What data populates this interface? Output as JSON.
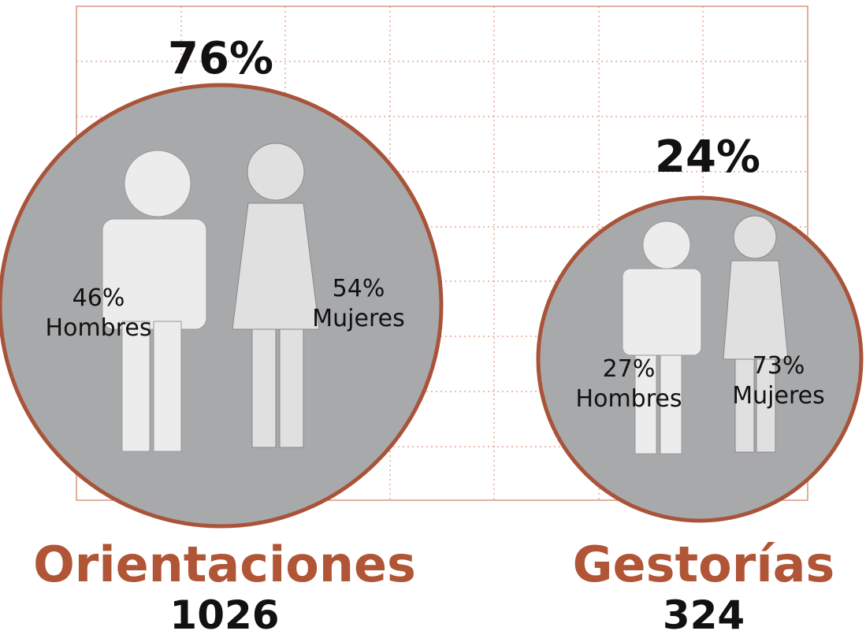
{
  "groups": [
    {
      "share": "76%",
      "men": {
        "pct": "46%",
        "label": "Hombres"
      },
      "women": {
        "pct": "54%",
        "label": "Mujeres"
      },
      "title": "Orientaciones",
      "total": "1026"
    },
    {
      "share": "24%",
      "men": {
        "pct": "27%",
        "label": "Hombres"
      },
      "women": {
        "pct": "73%",
        "label": "Mujeres"
      },
      "title": "Gestorías",
      "total": "324"
    }
  ]
}
